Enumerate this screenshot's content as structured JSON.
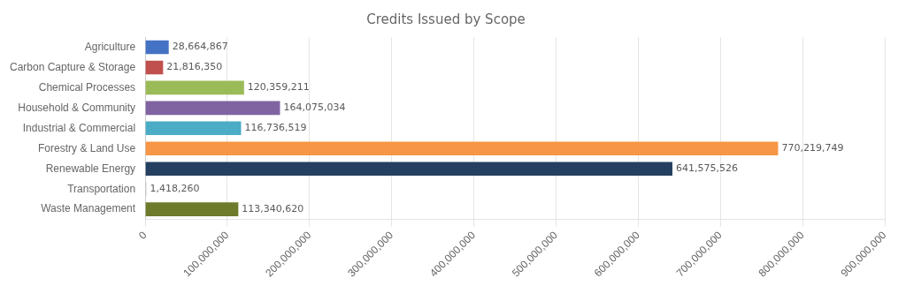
{
  "chart_data": {
    "type": "bar",
    "orientation": "horizontal",
    "title": "Credits Issued by Scope",
    "categories": [
      "Agriculture",
      "Carbon Capture & Storage",
      "Chemical Processes",
      "Household & Community",
      "Industrial & Commercial",
      "Forestry & Land Use",
      "Renewable Energy",
      "Transportation",
      "Waste Management"
    ],
    "values": [
      28664867,
      21816350,
      120359211,
      164075034,
      116736519,
      770219749,
      641575526,
      1418260,
      113340620
    ],
    "value_labels": [
      "28,664,867",
      "21,816,350",
      "120,359,211",
      "164,075,034",
      "116,736,519",
      "770,219,749",
      "641,575,526",
      "1,418,260",
      "113,340,620"
    ],
    "colors": [
      "#4472C4",
      "#C0504D",
      "#9BBB59",
      "#8064A2",
      "#4BACC6",
      "#F79646",
      "#243F60",
      "#C0C0C0",
      "#6E7B2A"
    ],
    "xlim": [
      0,
      900000000
    ],
    "xticks": [
      0,
      {
        "value": 100000000,
        "label": "100,000,000"
      },
      {
        "value": 200000000,
        "label": "200,000,000"
      },
      {
        "value": 300000000,
        "label": "300,000,000"
      },
      {
        "value": 400000000,
        "label": "400,000,000"
      },
      {
        "value": 500000000,
        "label": "500,000,000"
      },
      {
        "value": 600000000,
        "label": "600,000,000"
      },
      {
        "value": 700000000,
        "label": "700,000,000"
      },
      {
        "value": 800000000,
        "label": "800,000,000"
      },
      {
        "value": 900000000,
        "label": "900,000,000"
      }
    ],
    "grid": true,
    "data_labels": true
  }
}
